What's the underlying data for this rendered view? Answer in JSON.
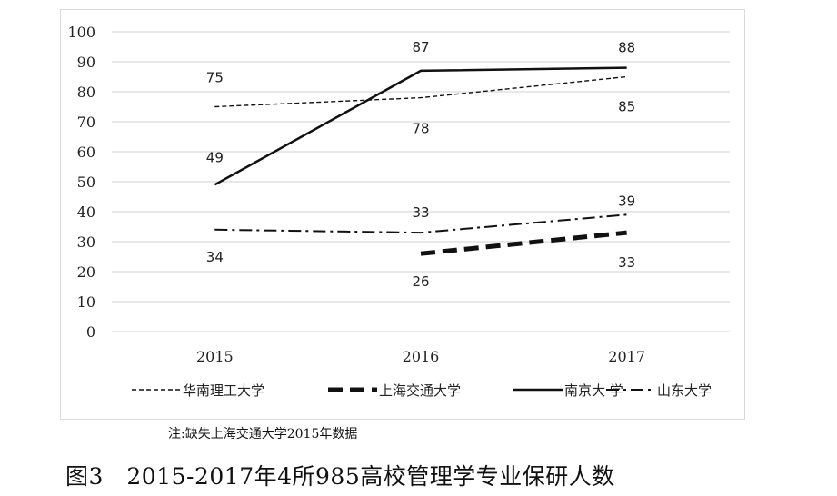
{
  "chart_data": {
    "type": "line",
    "title": "",
    "xlabel": "",
    "ylabel": "",
    "categories": [
      "2015",
      "2016",
      "2017"
    ],
    "ylim": [
      0,
      100
    ],
    "yticks": [
      "100",
      "90",
      "80",
      "70",
      "60",
      "50",
      "40",
      "30",
      "20",
      "10",
      "0"
    ],
    "grid": true,
    "legend_position": "bottom",
    "series": [
      {
        "name": "华南理工大学",
        "values": [
          75,
          78,
          85
        ],
        "labels": [
          "75",
          "78",
          "85"
        ],
        "style": "dashed-thin",
        "color": "#111111"
      },
      {
        "name": "上海交通大学",
        "values": [
          null,
          26,
          33
        ],
        "labels": [
          null,
          "26",
          "33"
        ],
        "style": "dashed-thick",
        "color": "#111111"
      },
      {
        "name": "南京大 学",
        "values": [
          49,
          87,
          88
        ],
        "labels": [
          "49",
          "87",
          "88"
        ],
        "style": "solid",
        "color": "#111111"
      },
      {
        "name": "山东大学",
        "values": [
          34,
          33,
          39
        ],
        "labels": [
          "34",
          "33",
          "39"
        ],
        "style": "dash-dot",
        "color": "#111111"
      }
    ]
  },
  "note": "注:缺失上海交通大学2015年数据",
  "caption": "图3　2015-2017年4所985高校管理学专业保研人数"
}
